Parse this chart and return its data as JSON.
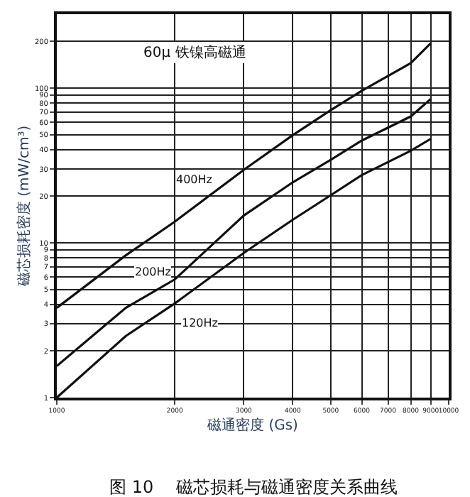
{
  "chart_data": {
    "type": "line",
    "title": "图 10　 磁芯损耗与磁通密度关系曲线",
    "xlabel": "磁通密度 (Gs)",
    "ylabel": "磁芯损耗密度 (mW/cm³)",
    "annotations": [
      "60μ 铁镍高磁通"
    ],
    "x": [
      1000,
      1500,
      2000,
      3000,
      4000,
      5000,
      6000,
      8000,
      9000
    ],
    "series": [
      {
        "name": "400Hz",
        "color": "#111111",
        "values": [
          3.8,
          8.3,
          13.7,
          29.6,
          49.6,
          72,
          96,
          145,
          195
        ]
      },
      {
        "name": "200Hz",
        "color": "#111111",
        "values": [
          1.6,
          3.8,
          5.8,
          15,
          24.6,
          34.4,
          45.8,
          65.5,
          85
        ]
      },
      {
        "name": "120Hz",
        "color": "#111111",
        "values": [
          1.0,
          2.5,
          4.06,
          8.6,
          14.1,
          20.3,
          27.4,
          39.3,
          47
        ]
      }
    ],
    "log": "xy",
    "xlim": [
      1000,
      10000
    ],
    "ylim": [
      1,
      300
    ],
    "xticks": [
      1000,
      2000,
      3000,
      4000,
      5000,
      6000,
      7000,
      8000,
      9000,
      10000
    ],
    "yticks": [
      1,
      2,
      3,
      4,
      5,
      6,
      7,
      8,
      9,
      10,
      20,
      30,
      40,
      50,
      60,
      70,
      80,
      90,
      100,
      200
    ],
    "grid": true,
    "legend": false,
    "marker": "none",
    "line_style": "solid"
  }
}
